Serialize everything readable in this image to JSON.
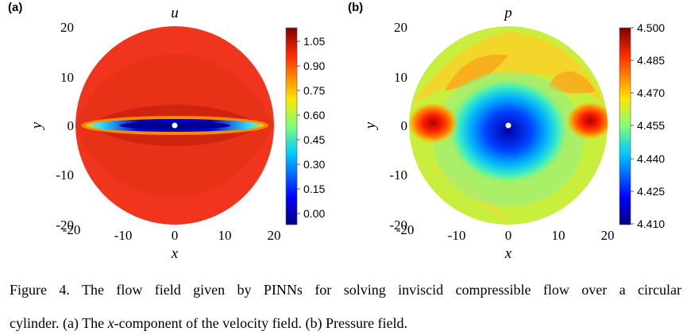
{
  "figure": {
    "panels": [
      {
        "tag": "(a)",
        "title": "u",
        "xlabel": "x",
        "ylabel": "y",
        "x_ticks": [
          "-20",
          "-10",
          "0",
          "10",
          "20"
        ],
        "y_ticks": [
          "20",
          "10",
          "0",
          "-10",
          "-20"
        ],
        "colorbar_ticks": [
          "1.05",
          "0.90",
          "0.75",
          "0.60",
          "0.45",
          "0.30",
          "0.15",
          "0.00"
        ]
      },
      {
        "tag": "(b)",
        "title": "p",
        "xlabel": "x",
        "ylabel": "y",
        "x_ticks": [
          "-20",
          "-10",
          "0",
          "10",
          "20"
        ],
        "y_ticks": [
          "20",
          "10",
          "0",
          "-10",
          "-20"
        ],
        "colorbar_ticks": [
          "4.500",
          "4.485",
          "4.470",
          "4.455",
          "4.440",
          "4.425",
          "4.410"
        ]
      }
    ]
  },
  "chart_data": [
    {
      "type": "heatmap",
      "title": "u",
      "xlabel": "x",
      "ylabel": "y",
      "xlim": [
        -20,
        20
      ],
      "ylim": [
        -20,
        20
      ],
      "colorbar_range": [
        -0.05,
        1.15
      ],
      "colorbar_ticks": [
        1.05,
        0.9,
        0.75,
        0.6,
        0.45,
        0.3,
        0.15,
        0.0
      ],
      "colormap": "jet",
      "domain": "circle radius 20 centered at origin"
    },
    {
      "type": "heatmap",
      "title": "p",
      "xlabel": "x",
      "ylabel": "y",
      "xlim": [
        -20,
        20
      ],
      "ylim": [
        -20,
        20
      ],
      "colorbar_range": [
        4.41,
        4.5
      ],
      "colorbar_ticks": [
        4.5,
        4.485,
        4.47,
        4.455,
        4.44,
        4.425,
        4.41
      ],
      "colormap": "jet",
      "domain": "circle radius 20 centered at origin"
    }
  ],
  "caption": {
    "line1": "Figure 4. The flow field given by PINNs for solving inviscid compressible flow over a circular",
    "line2_a": "cylinder. (a) The ",
    "line2_var": "x",
    "line2_b": "-component of the velocity field. (b) Pressure field."
  }
}
